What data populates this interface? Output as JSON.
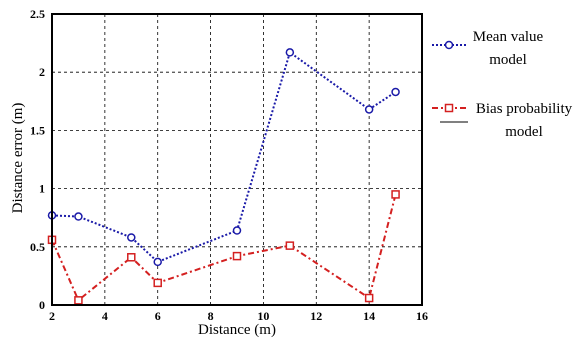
{
  "chart_data": {
    "type": "line",
    "title": "",
    "xlabel": "Distance (m)",
    "ylabel": "Distance error (m)",
    "xlim": [
      2,
      16
    ],
    "ylim": [
      0,
      2.5
    ],
    "xticks": [
      2,
      4,
      6,
      8,
      10,
      12,
      14,
      16
    ],
    "yticks": [
      0,
      0.5,
      1,
      1.5,
      2,
      2.5
    ],
    "xtick_labels": [
      "2",
      "4",
      "6",
      "8",
      "10",
      "12",
      "14",
      "16"
    ],
    "ytick_labels": [
      "0",
      "0.5",
      "1",
      "1.5",
      "2",
      "2.5"
    ],
    "grid": true,
    "legend_position": "right, outside plot",
    "series": [
      {
        "name_lines": [
          "Mean value",
          "model"
        ],
        "color": "#1a1aa8",
        "line_style": "dotted",
        "marker": "circle",
        "x": [
          2,
          3,
          5,
          6,
          9,
          11,
          14,
          15
        ],
        "y": [
          0.77,
          0.76,
          0.58,
          0.37,
          0.64,
          2.17,
          1.68,
          1.83
        ]
      },
      {
        "name_lines": [
          "Bias probability",
          "model"
        ],
        "color": "#d42020",
        "line_style": "dash-dot",
        "marker": "square",
        "x": [
          2,
          3,
          5,
          6,
          9,
          11,
          14,
          15
        ],
        "y": [
          0.56,
          0.04,
          0.41,
          0.19,
          0.42,
          0.51,
          0.06,
          0.95
        ]
      }
    ]
  }
}
